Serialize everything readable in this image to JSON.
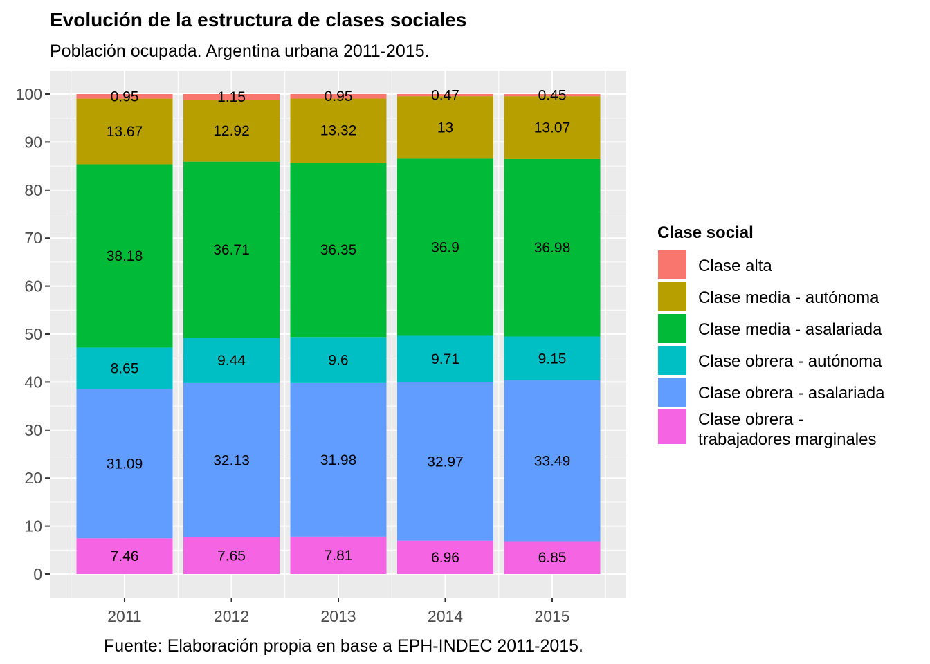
{
  "chart_data": {
    "type": "bar",
    "stacked": true,
    "title": "Evolución de la estructura de clases sociales",
    "subtitle": "Población ocupada. Argentina urbana 2011-2015.",
    "caption": "Fuente: Elaboración propia en base a EPH-INDEC 2011-2015.",
    "xlabel": "",
    "ylabel": "",
    "ylim": [
      0,
      100
    ],
    "yticks": [
      "0",
      "10",
      "20",
      "30",
      "40",
      "50",
      "60",
      "70",
      "80",
      "90",
      "100"
    ],
    "grid": true,
    "legend_position": "right",
    "legend_title": "Clase social",
    "categories": [
      "2011",
      "2012",
      "2013",
      "2014",
      "2015"
    ],
    "series": [
      {
        "name": "Clase obrera - trabajadores marginales",
        "legend_lines": [
          "Clase obrera -",
          "trabajadores marginales"
        ],
        "color": "#F564E3",
        "values": [
          7.46,
          7.65,
          7.81,
          6.96,
          6.85
        ],
        "labels": [
          "7.46",
          "7.65",
          "7.81",
          "6.96",
          "6.85"
        ]
      },
      {
        "name": "Clase obrera - asalariada",
        "legend_lines": [
          "Clase obrera - asalariada"
        ],
        "color": "#619CFF",
        "values": [
          31.09,
          32.13,
          31.98,
          32.97,
          33.49
        ],
        "labels": [
          "31.09",
          "32.13",
          "31.98",
          "32.97",
          "33.49"
        ]
      },
      {
        "name": "Clase obrera - autónoma",
        "legend_lines": [
          "Clase obrera - autónoma"
        ],
        "color": "#00BFC4",
        "values": [
          8.65,
          9.44,
          9.6,
          9.71,
          9.15
        ],
        "labels": [
          "8.65",
          "9.44",
          "9.6",
          "9.71",
          "9.15"
        ]
      },
      {
        "name": "Clase media - asalariada",
        "legend_lines": [
          "Clase media - asalariada"
        ],
        "color": "#00BA38",
        "values": [
          38.18,
          36.71,
          36.35,
          36.9,
          36.98
        ],
        "labels": [
          "38.18",
          "36.71",
          "36.35",
          "36.9",
          "36.98"
        ]
      },
      {
        "name": "Clase media - autónoma",
        "legend_lines": [
          "Clase media - autónoma"
        ],
        "color": "#B79F00",
        "values": [
          13.67,
          12.92,
          13.32,
          13,
          13.07
        ],
        "labels": [
          "13.67",
          "12.92",
          "13.32",
          "13",
          "13.07"
        ]
      },
      {
        "name": "Clase alta",
        "legend_lines": [
          "Clase alta"
        ],
        "color": "#F8766D",
        "values": [
          0.95,
          1.15,
          0.95,
          0.47,
          0.45
        ],
        "labels": [
          "0.95",
          "1.15",
          "0.95",
          "0.47",
          "0.45"
        ]
      }
    ],
    "legend_order": [
      "Clase alta",
      "Clase media - autónoma",
      "Clase media - asalariada",
      "Clase obrera - autónoma",
      "Clase obrera - asalariada",
      "Clase obrera - trabajadores marginales"
    ]
  }
}
